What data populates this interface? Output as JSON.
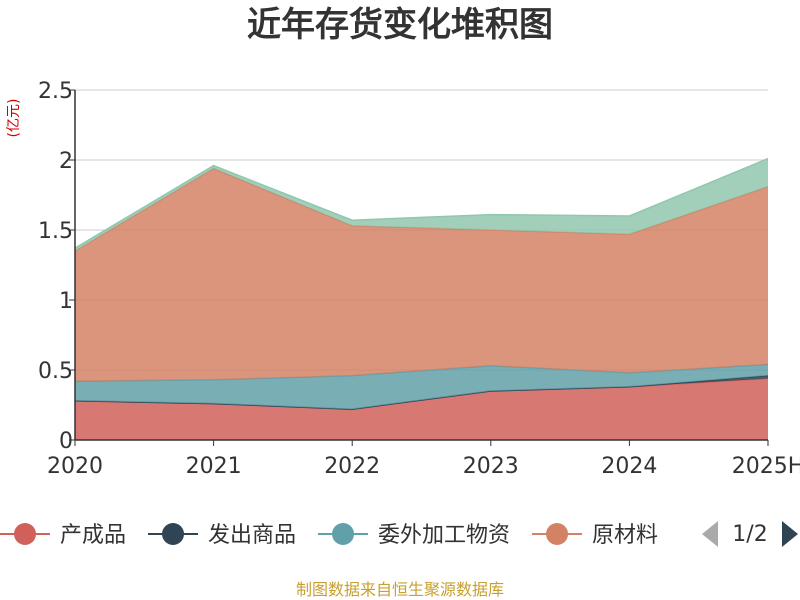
{
  "title": "近年存货变化堆积图",
  "unit": "(亿元)",
  "source": "制图数据来自恒生聚源数据库",
  "source_color": "#c8a030",
  "legend_page": "1/2",
  "chart_data": {
    "type": "area",
    "stacked": true,
    "title": "近年存货变化堆积图",
    "xlabel": "",
    "ylabel": "(亿元)",
    "categories": [
      "2020",
      "2021",
      "2022",
      "2023",
      "2024",
      "2025H"
    ],
    "ylim": [
      0,
      2.5
    ],
    "yticks": [
      "0",
      "0.5",
      "1",
      "1.5",
      "2",
      "2.5"
    ],
    "grid": true,
    "legend_position": "bottom",
    "series": [
      {
        "name": "产成品",
        "color": "#d0605a",
        "values": [
          0.28,
          0.26,
          0.22,
          0.35,
          0.38,
          0.44
        ]
      },
      {
        "name": "发出商品",
        "color": "#2f4554",
        "values": [
          0.0,
          0.0,
          0.0,
          0.0,
          0.0,
          0.02
        ]
      },
      {
        "name": "委外加工物资",
        "color": "#61a0a8",
        "values": [
          0.14,
          0.17,
          0.24,
          0.18,
          0.1,
          0.08
        ]
      },
      {
        "name": "原材料",
        "color": "#d48265",
        "values": [
          0.93,
          1.51,
          1.07,
          0.97,
          0.99,
          1.27
        ]
      },
      {
        "color": "#91c7ae",
        "values": [
          0.02,
          0.02,
          0.04,
          0.11,
          0.13,
          0.2
        ]
      }
    ]
  }
}
